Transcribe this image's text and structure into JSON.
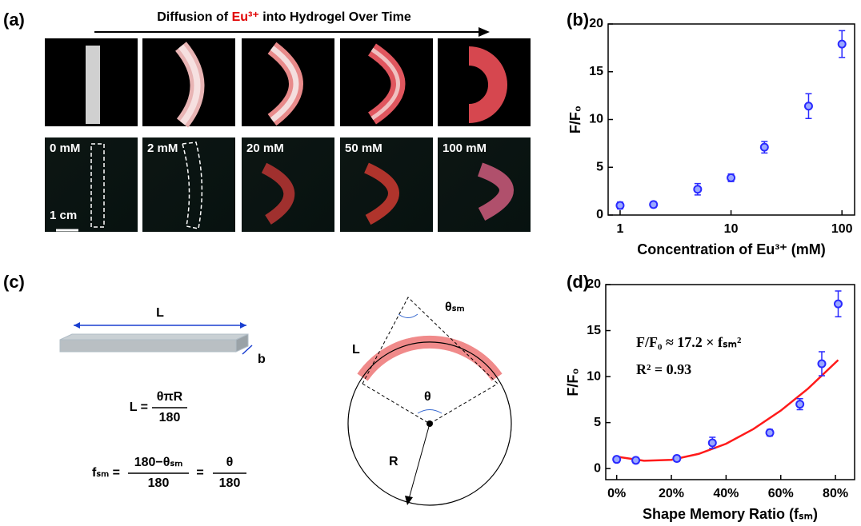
{
  "panel_labels": [
    "(a)",
    "(b)",
    "(c)",
    "(d)"
  ],
  "panel_a": {
    "title_parts": [
      "Diffusion of ",
      "Eu³⁺",
      " into Hydrogel Over Time"
    ],
    "samples": [
      "0 mM",
      "2 mM",
      "20 mM",
      "50 mM",
      "100 mM"
    ],
    "scale_bar": "1 cm"
  },
  "panel_c": {
    "bar_length": "L",
    "bar_width": "b",
    "eq1": {
      "lhs": "L =",
      "num": "θπR",
      "den": "180"
    },
    "eq2": {
      "lhs": "fₛₘ =",
      "num1": "180−θₛₘ",
      "den1": "180",
      "mid": "=",
      "num2": "θ",
      "den2": "180"
    },
    "circle": {
      "arc": "L",
      "apex_angle": "θₛₘ",
      "center_angle": "θ",
      "radius": "R"
    }
  },
  "chart_data": [
    {
      "type": "scatter",
      "xlabel": "Concentration of Eu³⁺ (mM)",
      "ylabel": "F/F₀",
      "log_x": true,
      "xlim": [
        0.78,
        130
      ],
      "xticks": [
        1,
        10,
        100
      ],
      "ylim": [
        0,
        20
      ],
      "yticks": [
        0,
        5,
        10,
        15,
        20
      ],
      "series": [
        {
          "color": "#2a2aff",
          "x": [
            1,
            2,
            5,
            10,
            20,
            50,
            100
          ],
          "values": [
            1.0,
            1.1,
            2.7,
            3.9,
            7.1,
            11.4,
            17.9
          ],
          "errors": [
            0.35,
            0.3,
            0.6,
            0.4,
            0.6,
            1.3,
            1.4
          ]
        }
      ]
    },
    {
      "type": "scatter",
      "xlabel": "Shape Memory Ratio (fₛₘ)",
      "ylabel": "F/F₀",
      "log_x": false,
      "xlim": [
        -4,
        87
      ],
      "xticks": [
        {
          "value": 0,
          "label": "0%"
        },
        {
          "value": 20,
          "label": "20%"
        },
        {
          "value": 40,
          "label": "40%"
        },
        {
          "value": 60,
          "label": "60%"
        },
        {
          "value": 80,
          "label": "80%"
        }
      ],
      "ylim": [
        -1.2,
        20
      ],
      "yticks": [
        0,
        5,
        10,
        15,
        20
      ],
      "series": [
        {
          "color": "#2a2aff",
          "x": [
            0,
            7,
            22,
            35,
            56,
            67,
            75,
            81
          ],
          "values": [
            1.0,
            0.9,
            1.1,
            2.8,
            3.9,
            7.0,
            11.4,
            17.9
          ],
          "errors": [
            0.3,
            0.3,
            0.3,
            0.6,
            0.35,
            0.6,
            1.3,
            1.4
          ]
        }
      ],
      "fit": {
        "color": "#ff1a1a",
        "x": [
          0,
          10,
          20,
          30,
          40,
          50,
          60,
          70,
          81
        ],
        "values": [
          1.3,
          0.85,
          0.95,
          1.6,
          2.7,
          4.3,
          6.3,
          8.7,
          11.8
        ]
      },
      "annotations": [
        "F/F₀ ≈ 17.2 × fₛₘ²",
        "R² = 0.93"
      ]
    }
  ]
}
